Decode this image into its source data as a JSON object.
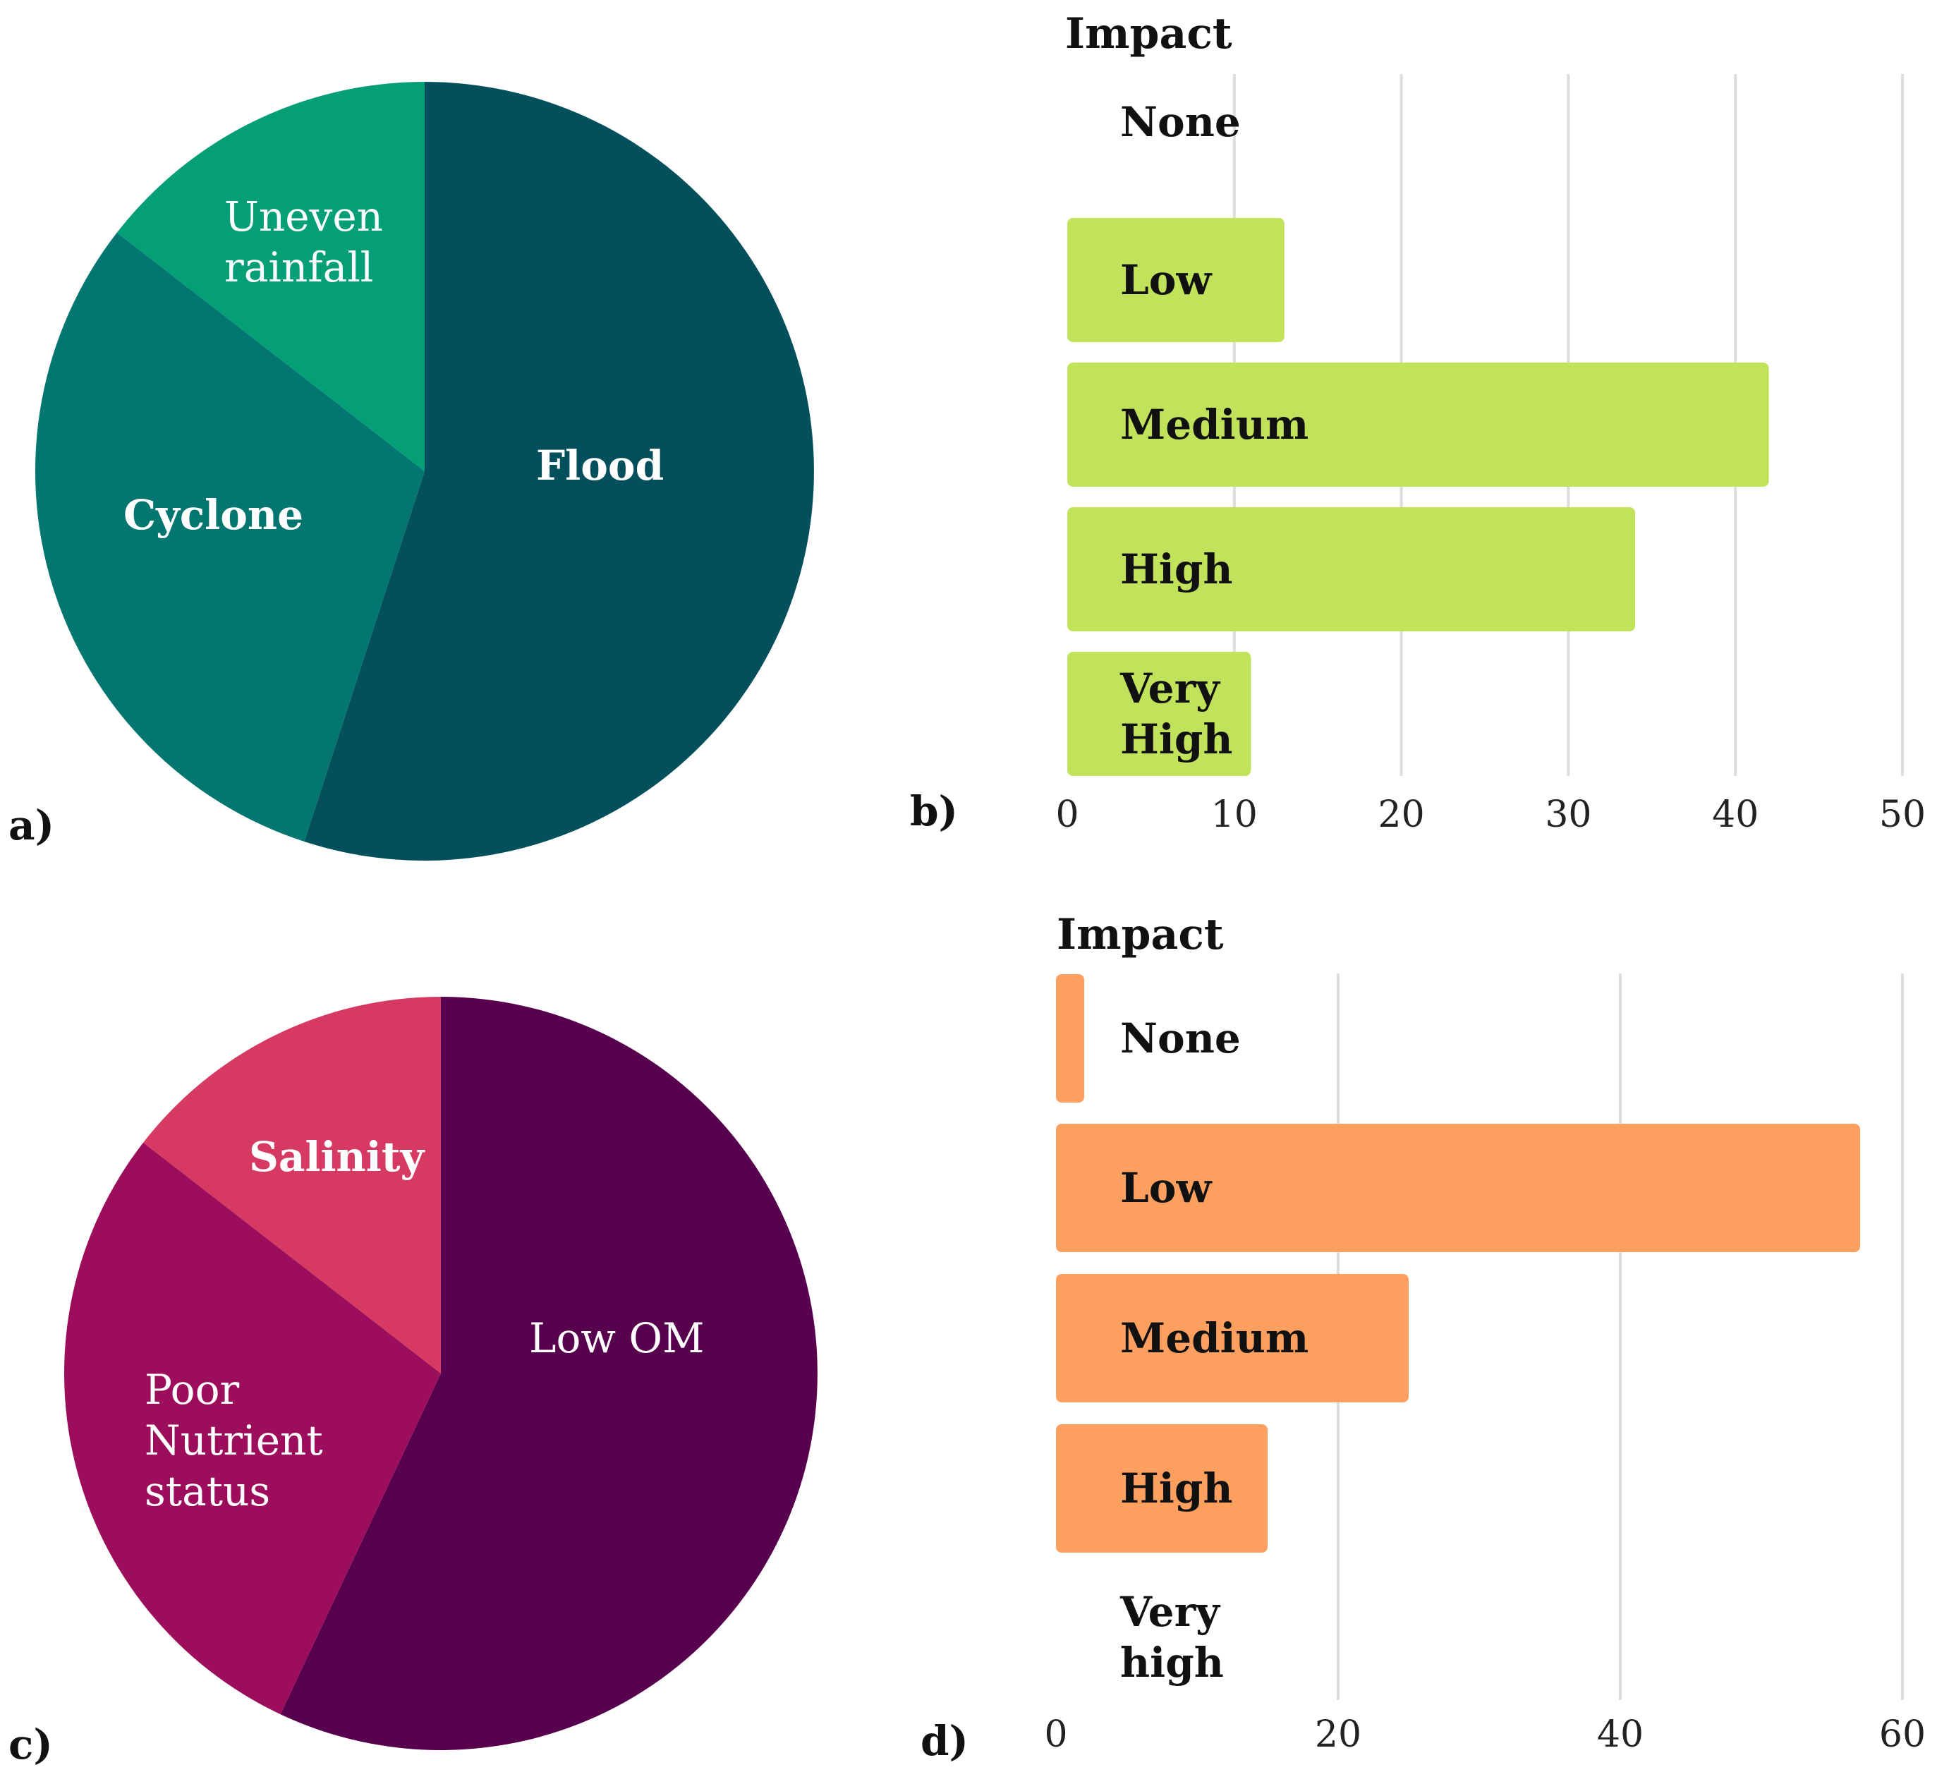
{
  "chart_data": [
    {
      "panel": "a)",
      "type": "pie",
      "slices": [
        {
          "label": [
            "Flood"
          ],
          "value": 55,
          "color": "#034f5c"
        },
        {
          "label": [
            "Cyclone"
          ],
          "value": 30.5,
          "color": "#02766f"
        },
        {
          "label": [
            "Uneven",
            "rainfall"
          ],
          "value": 14.5,
          "color": "#049e77"
        }
      ]
    },
    {
      "panel": "b)",
      "type": "bar",
      "orientation": "horizontal",
      "ylabel": "Impact",
      "categories": [
        [
          "None"
        ],
        [
          "Low"
        ],
        [
          "Medium"
        ],
        [
          "High"
        ],
        [
          "Very",
          "High"
        ]
      ],
      "values": [
        0,
        13,
        42,
        34,
        11
      ],
      "xlim": [
        0,
        50
      ],
      "xticks": [
        0,
        10,
        20,
        30,
        40,
        50
      ],
      "bar_color": "#c1e35c",
      "grid": true
    },
    {
      "panel": "c)",
      "type": "pie",
      "slices": [
        {
          "label": [
            "Low OM"
          ],
          "value": 57,
          "color": "#57004e"
        },
        {
          "label": [
            "Poor",
            "Nutrient",
            "status"
          ],
          "value": 28.5,
          "color": "#9c0d5c"
        },
        {
          "label": [
            "Salinity"
          ],
          "value": 14.5,
          "color": "#d63a62"
        }
      ]
    },
    {
      "panel": "d)",
      "type": "bar",
      "orientation": "horizontal",
      "ylabel": "Impact",
      "categories": [
        [
          "None"
        ],
        [
          "Low"
        ],
        [
          "Medium"
        ],
        [
          "High"
        ],
        [
          "Very",
          "high"
        ]
      ],
      "values": [
        2,
        57,
        25,
        15,
        0
      ],
      "xlim": [
        0,
        60
      ],
      "xticks": [
        0,
        20,
        40,
        60
      ],
      "bar_color": "#fd9f5f",
      "grid": true
    }
  ]
}
